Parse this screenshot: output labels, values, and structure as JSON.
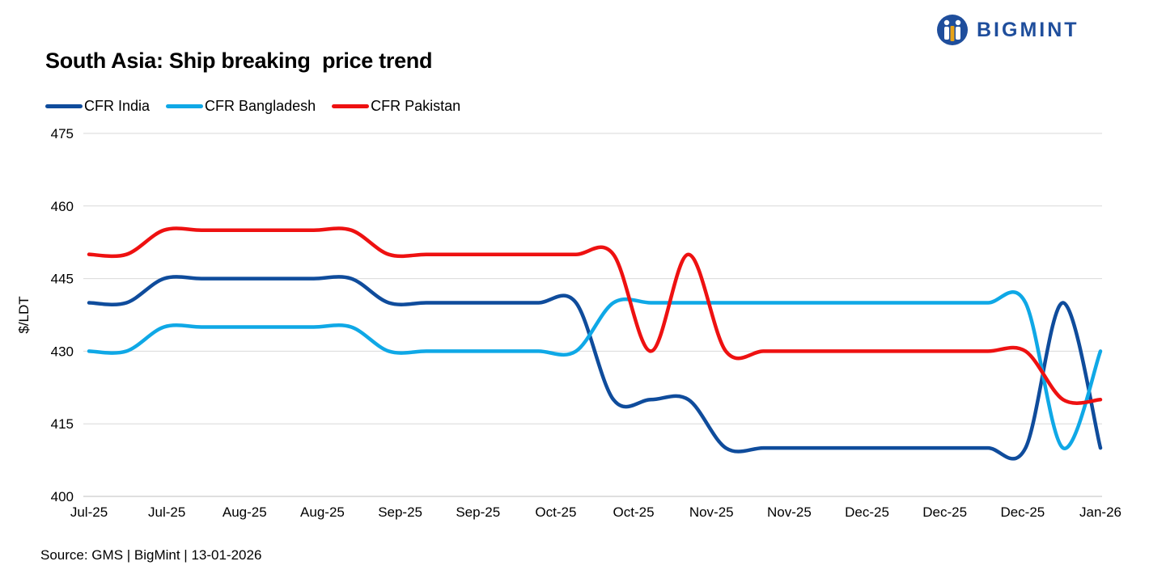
{
  "logo": {
    "text": "BIGMINT",
    "color": "#1f4e9c"
  },
  "source": "Source: GMS | BigMint  | 13-01-2026",
  "chart_data": {
    "type": "line",
    "title": "South Asia: Ship breaking  price trend",
    "ylabel": "$/LDT",
    "xlabel": "",
    "ylim": [
      400,
      475
    ],
    "yticks": [
      400,
      415,
      430,
      445,
      460,
      475
    ],
    "grid": true,
    "legend_position": "top-left",
    "x": [
      "Jul-25",
      "Jul-25",
      "Jul-25",
      "Jul-25",
      "Aug-25",
      "Aug-25",
      "Aug-25",
      "Aug-25",
      "Sep-25",
      "Sep-25",
      "Sep-25",
      "Sep-25",
      "Sep-25",
      "Oct-25",
      "Oct-25",
      "Oct-25",
      "Oct-25",
      "Oct-25",
      "Nov-25",
      "Nov-25",
      "Nov-25",
      "Nov-25",
      "Dec-25",
      "Dec-25",
      "Dec-25",
      "Dec-25",
      "Dec-25",
      "Jan-26"
    ],
    "x_tick_labels": [
      "Jul-25",
      "Jul-25",
      "Aug-25",
      "Aug-25",
      "Sep-25",
      "Sep-25",
      "Oct-25",
      "Oct-25",
      "Nov-25",
      "Nov-25",
      "Dec-25",
      "Dec-25",
      "Dec-25",
      "Jan-26"
    ],
    "series": [
      {
        "name": "CFR India",
        "color": "#0f4c9c",
        "values": [
          440,
          440,
          445,
          445,
          445,
          445,
          445,
          445,
          440,
          440,
          440,
          440,
          440,
          440,
          420,
          420,
          420,
          410,
          410,
          410,
          410,
          410,
          410,
          410,
          410,
          410,
          440,
          410
        ]
      },
      {
        "name": "CFR Bangladesh",
        "color": "#0fa8e6",
        "values": [
          430,
          430,
          435,
          435,
          435,
          435,
          435,
          435,
          430,
          430,
          430,
          430,
          430,
          430,
          440,
          440,
          440,
          440,
          440,
          440,
          440,
          440,
          440,
          440,
          440,
          440,
          410,
          430
        ]
      },
      {
        "name": "CFR Pakistan",
        "color": "#ee1111",
        "values": [
          450,
          450,
          455,
          455,
          455,
          455,
          455,
          455,
          450,
          450,
          450,
          450,
          450,
          450,
          450,
          430,
          450,
          430,
          430,
          430,
          430,
          430,
          430,
          430,
          430,
          430,
          420,
          420
        ]
      }
    ]
  }
}
